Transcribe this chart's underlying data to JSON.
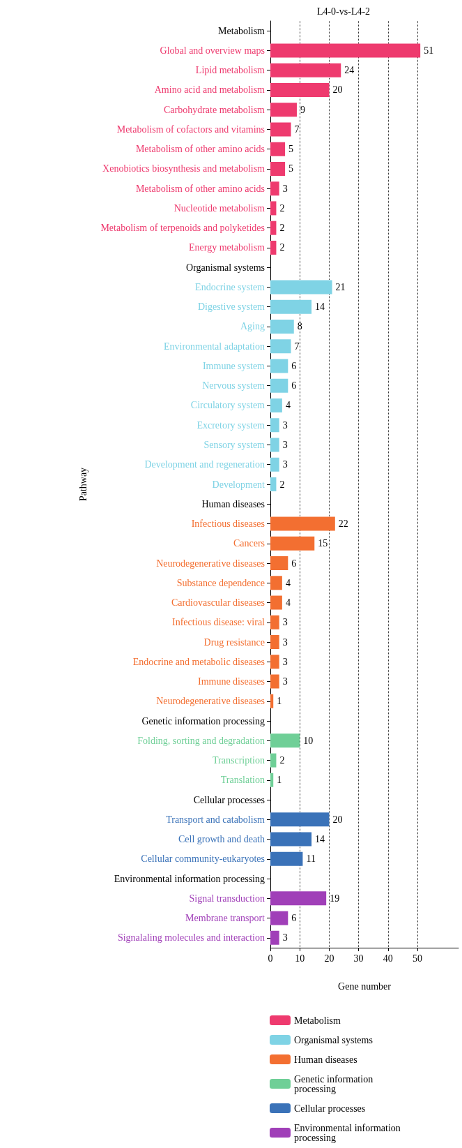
{
  "chart_data": {
    "type": "bar",
    "orientation": "horizontal",
    "title": "L4-0-vs-L4-2",
    "xlabel": "Gene number",
    "ylabel": "Pathway",
    "categories": [
      "Metabolism",
      "Global and overview maps",
      "Lipid metabolism",
      "Amino acid and metabolism",
      "Carbohydrate metabolism",
      "Metabolism of cofactors and vitamins",
      "Metabolism of other amino acids",
      "Xenobiotics biosynthesis and metabolism",
      "Metabolism of other amino acids",
      "Nucleotide metabolism",
      "Metabolism of terpenoids and polyketides",
      "Energy metabolism",
      "Organismal systems",
      "Endocrine system",
      "Digestive system",
      "Aging",
      "Environmental adaptation",
      "Immune system",
      "Nervous system",
      "Circulatory system",
      "Excretory system",
      "Sensory system",
      "Development and regeneration",
      "Development",
      "Human diseases",
      "Infectious diseases",
      "Cancers",
      "Neurodegenerative diseases",
      "Substance dependence",
      "Cardiovascular diseases",
      "Infectious disease: viral",
      "Drug resistance",
      "Endocrine and metabolic diseases",
      "Immune diseases",
      "Neurodegenerative diseases",
      "Genetic information processing",
      "Folding, sorting and degradation",
      "Transcription",
      "Translation",
      "Cellular processes",
      "Transport and catabolism",
      "Cell growth and death",
      "Cellular community-eukaryotes",
      "Environmental information processing",
      "Signal transduction",
      "Membrane transport",
      "Signalaling molecules and interaction"
    ],
    "series": [
      {
        "name": "Metabolism",
        "color": "#ee3a6e",
        "values": [
          null,
          51,
          24,
          20,
          9,
          7,
          5,
          5,
          3,
          2,
          2,
          2,
          null,
          null,
          null,
          null,
          null,
          null,
          null,
          null,
          null,
          null,
          null,
          null,
          null,
          null,
          null,
          null,
          null,
          null,
          null,
          null,
          null,
          null,
          null,
          null,
          null,
          null,
          null,
          null,
          null,
          null,
          null,
          null,
          null,
          null,
          null
        ]
      },
      {
        "name": "Organismal systems",
        "color": "#7fd3e5",
        "values": [
          null,
          null,
          null,
          null,
          null,
          null,
          null,
          null,
          null,
          null,
          null,
          null,
          null,
          21,
          14,
          8,
          7,
          6,
          6,
          4,
          3,
          3,
          3,
          2,
          null,
          null,
          null,
          null,
          null,
          null,
          null,
          null,
          null,
          null,
          null,
          null,
          null,
          null,
          null,
          null,
          null,
          null,
          null,
          null,
          null,
          null,
          null
        ]
      },
      {
        "name": "Human diseases",
        "color": "#f36f31",
        "values": [
          null,
          null,
          null,
          null,
          null,
          null,
          null,
          null,
          null,
          null,
          null,
          null,
          null,
          null,
          null,
          null,
          null,
          null,
          null,
          null,
          null,
          null,
          null,
          null,
          null,
          22,
          15,
          6,
          4,
          4,
          3,
          3,
          3,
          3,
          1,
          null,
          null,
          null,
          null,
          null,
          null,
          null,
          null,
          null,
          null,
          null,
          null
        ]
      },
      {
        "name": "Genetic information processing",
        "color": "#6fcf97",
        "values": [
          null,
          null,
          null,
          null,
          null,
          null,
          null,
          null,
          null,
          null,
          null,
          null,
          null,
          null,
          null,
          null,
          null,
          null,
          null,
          null,
          null,
          null,
          null,
          null,
          null,
          null,
          null,
          null,
          null,
          null,
          null,
          null,
          null,
          null,
          null,
          null,
          10,
          2,
          1,
          null,
          null,
          null,
          null,
          null,
          null,
          null,
          null
        ]
      },
      {
        "name": "Cellular processes",
        "color": "#3a72b8",
        "values": [
          null,
          null,
          null,
          null,
          null,
          null,
          null,
          null,
          null,
          null,
          null,
          null,
          null,
          null,
          null,
          null,
          null,
          null,
          null,
          null,
          null,
          null,
          null,
          null,
          null,
          null,
          null,
          null,
          null,
          null,
          null,
          null,
          null,
          null,
          null,
          null,
          null,
          null,
          null,
          null,
          20,
          14,
          11,
          null,
          null,
          null,
          null
        ]
      },
      {
        "name": "Environmental information processing",
        "color": "#a03fb8",
        "values": [
          null,
          null,
          null,
          null,
          null,
          null,
          null,
          null,
          null,
          null,
          null,
          null,
          null,
          null,
          null,
          null,
          null,
          null,
          null,
          null,
          null,
          null,
          null,
          null,
          null,
          null,
          null,
          null,
          null,
          null,
          null,
          null,
          null,
          null,
          null,
          null,
          null,
          null,
          null,
          null,
          null,
          null,
          null,
          null,
          19,
          6,
          3
        ]
      }
    ],
    "xlim": [
      0,
      64
    ],
    "xticks": [
      0,
      10,
      20,
      30,
      40,
      50
    ],
    "grid": "x",
    "data_labels": true,
    "legend": "bottom"
  }
}
